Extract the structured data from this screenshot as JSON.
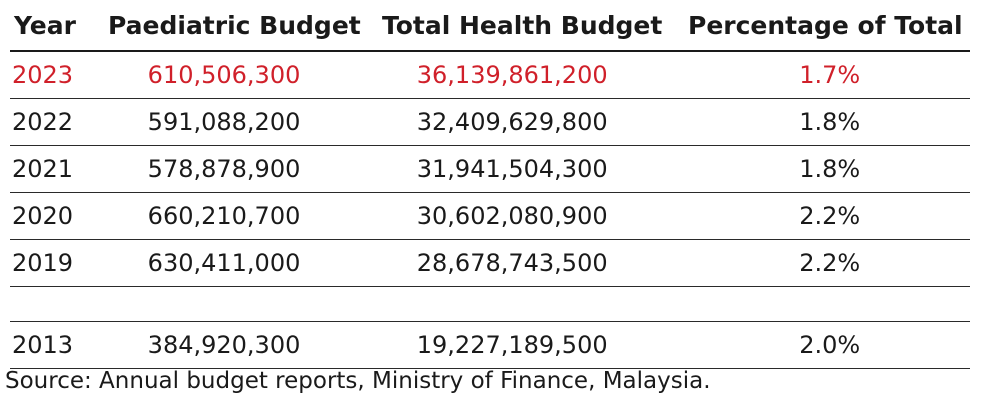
{
  "chart_data": {
    "type": "table",
    "columns": [
      "Year",
      "Paediatric Budget",
      "Total Health Budget",
      "Percentage of Total"
    ],
    "rows": [
      {
        "year": "2023",
        "paediatric": "610,506,300",
        "total": "36,139,861,200",
        "pct": "1.7%"
      },
      {
        "year": "2022",
        "paediatric": "591,088,200",
        "total": "32,409,629,800",
        "pct": "1.8%"
      },
      {
        "year": "2021",
        "paediatric": "578,878,900",
        "total": "31,941,504,300",
        "pct": "1.8%"
      },
      {
        "year": "2020",
        "paediatric": "660,210,700",
        "total": "30,602,080,900",
        "pct": "2.2%"
      },
      {
        "year": "2019",
        "paediatric": "630,411,000",
        "total": "28,678,743,500",
        "pct": "2.2%"
      },
      {
        "year": "2013",
        "paediatric": "384,920,300",
        "total": "19,227,189,500",
        "pct": "2.0%"
      }
    ],
    "highlight_color": "#d0202a"
  },
  "source_note": "Source: Annual budget reports, Ministry of Finance, Malaysia."
}
